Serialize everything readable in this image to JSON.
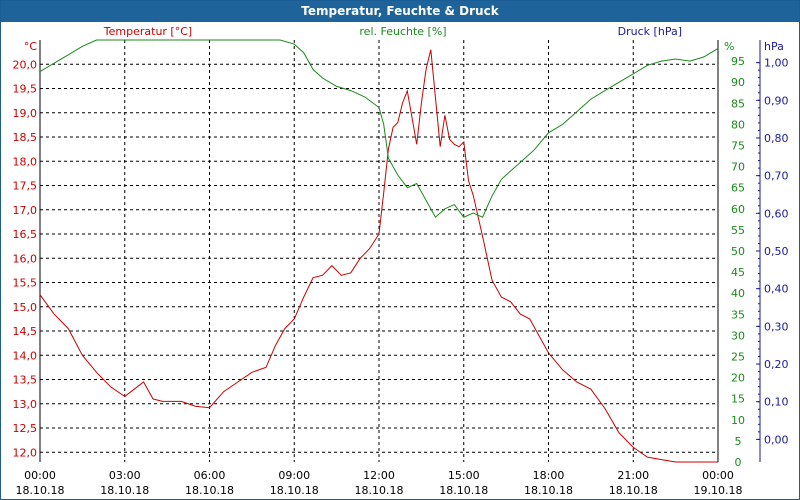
{
  "window": {
    "title": "Temperatur, Feuchte & Druck"
  },
  "colors": {
    "temperature": "#cc0000",
    "humidity": "#1a8a1a",
    "pressure": "#1a1a99",
    "title_bar": "#1e6399",
    "grid": "#000000"
  },
  "chart_data": {
    "type": "line",
    "title": "Temperatur, Feuchte & Druck",
    "grid": true,
    "x_axis": {
      "range": [
        "18.10.18 00:00",
        "19.10.18 00:00"
      ],
      "ticks": [
        {
          "time": "00:00",
          "date": "18.10.18"
        },
        {
          "time": "03:00",
          "date": "18.10.18"
        },
        {
          "time": "06:00",
          "date": "18.10.18"
        },
        {
          "time": "09:00",
          "date": "18.10.18"
        },
        {
          "time": "12:00",
          "date": "18.10.18"
        },
        {
          "time": "15:00",
          "date": "18.10.18"
        },
        {
          "time": "18:00",
          "date": "18.10.18"
        },
        {
          "time": "21:00",
          "date": "18.10.18"
        },
        {
          "time": "00:00",
          "date": "19.10.18"
        }
      ]
    },
    "axes": {
      "temperature": {
        "label": "Temperatur [°C]",
        "unit": "°C",
        "side": "left",
        "range": [
          11.8,
          20.5
        ],
        "ticks": [
          "20,0",
          "19,5",
          "19,0",
          "18,5",
          "18,0",
          "17,5",
          "17,0",
          "16,5",
          "16,0",
          "15,5",
          "15,0",
          "14,5",
          "14,0",
          "13,5",
          "13,0",
          "12,5",
          "12,0"
        ]
      },
      "humidity": {
        "label": "rel. Feuchte [%]",
        "unit": "%",
        "side": "right",
        "range": [
          0,
          100
        ],
        "ticks": [
          "95",
          "90",
          "85",
          "80",
          "75",
          "70",
          "65",
          "60",
          "55",
          "50",
          "45",
          "40",
          "35",
          "30",
          "25",
          "20",
          "15",
          "10",
          "5",
          "0"
        ]
      },
      "pressure": {
        "label": "Druck [hPa]",
        "unit": "hPa",
        "side": "right-outer",
        "range": [
          -0.06,
          1.06
        ],
        "ticks": [
          "1,00",
          "0,90",
          "0,80",
          "0,70",
          "0,60",
          "0,50",
          "0,40",
          "0,30",
          "0,20",
          "0,10",
          "0,00"
        ]
      }
    },
    "series": [
      {
        "name": "Temperatur [°C]",
        "axis": "temperature",
        "x": [
          "00:00",
          "00:30",
          "01:00",
          "01:30",
          "02:00",
          "02:30",
          "03:00",
          "03:20",
          "03:40",
          "04:00",
          "04:20",
          "04:40",
          "05:00",
          "05:30",
          "06:00",
          "06:30",
          "07:00",
          "07:30",
          "08:00",
          "08:20",
          "08:40",
          "09:00",
          "09:20",
          "09:40",
          "10:00",
          "10:20",
          "10:40",
          "11:00",
          "11:20",
          "11:40",
          "12:00",
          "12:10",
          "12:20",
          "12:30",
          "12:40",
          "12:50",
          "13:00",
          "13:10",
          "13:20",
          "13:30",
          "13:40",
          "13:50",
          "14:00",
          "14:10",
          "14:20",
          "14:30",
          "14:40",
          "14:50",
          "15:00",
          "15:10",
          "15:20",
          "15:40",
          "16:00",
          "16:20",
          "16:40",
          "17:00",
          "17:20",
          "17:40",
          "18:00",
          "18:30",
          "19:00",
          "19:30",
          "20:00",
          "20:30",
          "21:00",
          "21:30",
          "22:00",
          "22:30",
          "23:00",
          "23:30",
          "00:00"
        ],
        "values": [
          15.25,
          14.85,
          14.55,
          14.0,
          13.65,
          13.35,
          13.15,
          13.3,
          13.45,
          13.1,
          13.05,
          13.05,
          13.05,
          12.95,
          12.92,
          13.25,
          13.45,
          13.65,
          13.75,
          14.2,
          14.55,
          14.75,
          15.2,
          15.6,
          15.65,
          15.85,
          15.65,
          15.7,
          16.0,
          16.2,
          16.5,
          17.35,
          18.25,
          18.7,
          18.8,
          19.2,
          19.45,
          18.9,
          18.35,
          19.2,
          19.9,
          20.3,
          19.3,
          18.3,
          18.95,
          18.45,
          18.35,
          18.3,
          18.4,
          17.6,
          17.3,
          16.45,
          15.55,
          15.2,
          15.1,
          14.85,
          14.75,
          14.4,
          14.05,
          13.7,
          13.45,
          13.3,
          12.9,
          12.4,
          12.1,
          11.9,
          11.85,
          11.8,
          11.8,
          11.8,
          11.8
        ]
      },
      {
        "name": "rel. Feuchte [%]",
        "axis": "humidity",
        "x": [
          "00:00",
          "00:30",
          "01:00",
          "01:30",
          "02:00",
          "02:30",
          "03:00",
          "04:00",
          "05:00",
          "06:00",
          "07:00",
          "08:00",
          "08:30",
          "09:00",
          "09:20",
          "09:40",
          "10:00",
          "10:30",
          "11:00",
          "11:30",
          "12:00",
          "12:10",
          "12:20",
          "12:40",
          "13:00",
          "13:20",
          "13:40",
          "14:00",
          "14:20",
          "14:40",
          "15:00",
          "15:20",
          "15:40",
          "16:00",
          "16:20",
          "16:40",
          "17:00",
          "17:30",
          "18:00",
          "18:30",
          "19:00",
          "19:30",
          "20:00",
          "20:30",
          "21:00",
          "21:30",
          "22:00",
          "22:30",
          "23:00",
          "23:30",
          "00:00"
        ],
        "values": [
          92.5,
          94.5,
          96.5,
          98.5,
          100,
          100,
          100,
          100,
          100,
          100,
          100,
          100,
          100,
          99,
          97,
          93,
          91,
          89,
          88,
          86.5,
          84,
          80,
          72,
          68,
          65,
          66,
          62,
          58,
          60,
          61,
          58,
          59,
          58,
          63,
          67,
          69,
          71,
          74,
          78,
          80,
          83,
          86,
          88,
          90,
          92,
          94,
          95,
          95.5,
          95,
          96,
          98
        ]
      },
      {
        "name": "Druck [hPa]",
        "axis": "pressure",
        "x": [],
        "values": []
      }
    ]
  }
}
